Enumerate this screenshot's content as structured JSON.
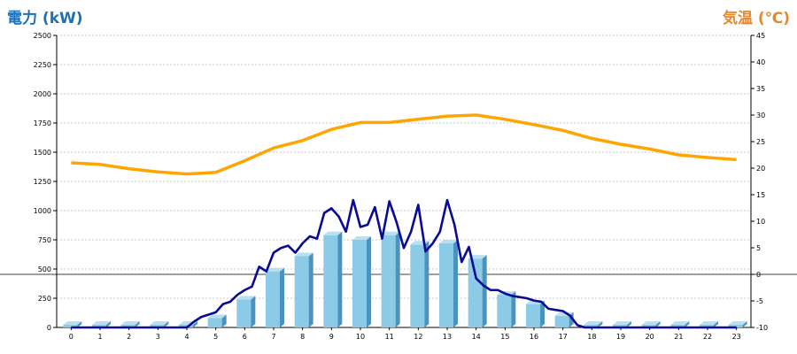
{
  "header": {
    "left_title": "電力 (kW)",
    "right_title": "気温 (℃)"
  },
  "colors": {
    "bar_front": "#8ccbe8",
    "bar_side": "#4a93bf",
    "bar_top": "#b8e0f3",
    "power_line": "#0a0a96",
    "temp_line": "#ffa500",
    "grid": "#c8c8c8",
    "left_title": "#1f6fb5",
    "right_title": "#e8862a"
  },
  "chart_data": {
    "type": "bar",
    "x": [
      "0",
      "1",
      "2",
      "3",
      "4",
      "5",
      "6",
      "7",
      "8",
      "9",
      "10",
      "11",
      "12",
      "13",
      "14",
      "15",
      "16",
      "17",
      "18",
      "19",
      "20",
      "21",
      "22",
      "23"
    ],
    "left_axis": {
      "min": 0,
      "max": 2500,
      "ticks": [
        "0",
        "250",
        "500",
        "750",
        "1000",
        "1250",
        "1500",
        "1750",
        "2000",
        "2250",
        "2500"
      ]
    },
    "right_axis": {
      "min": -10,
      "max": 45,
      "ticks": [
        "-10",
        "-5",
        "0",
        "5",
        "10",
        "15",
        "20",
        "25",
        "30",
        "35",
        "40",
        "45"
      ]
    },
    "grid": true,
    "series": [
      {
        "type": "bar",
        "axis": "left",
        "values": [
          0,
          0,
          0,
          0,
          0,
          80,
          240,
          480,
          610,
          790,
          750,
          790,
          710,
          720,
          590,
          280,
          200,
          100,
          0,
          0,
          0,
          0,
          0,
          0
        ]
      },
      {
        "type": "line",
        "axis": "left",
        "x": [
          0,
          0.5,
          1,
          1.5,
          2,
          2.5,
          3,
          3.5,
          4,
          4.25,
          4.5,
          4.75,
          5,
          5.25,
          5.5,
          5.75,
          6,
          6.25,
          6.5,
          6.75,
          7,
          7.25,
          7.5,
          7.75,
          8,
          8.25,
          8.5,
          8.75,
          9,
          9.25,
          9.5,
          9.75,
          10,
          10.25,
          10.5,
          10.75,
          11,
          11.25,
          11.5,
          11.75,
          12,
          12.25,
          12.5,
          12.75,
          13,
          13.25,
          13.5,
          13.75,
          14,
          14.25,
          14.5,
          14.75,
          15,
          15.25,
          15.5,
          15.75,
          16,
          16.25,
          16.5,
          16.75,
          17,
          17.25,
          17.5,
          17.75,
          18,
          19,
          20,
          21,
          22,
          23
        ],
        "values": [
          0,
          0,
          0,
          0,
          0,
          0,
          0,
          0,
          0,
          50,
          90,
          110,
          130,
          200,
          220,
          280,
          320,
          350,
          520,
          480,
          640,
          680,
          700,
          640,
          720,
          780,
          760,
          980,
          1020,
          950,
          820,
          1090,
          860,
          880,
          1030,
          760,
          1080,
          900,
          680,
          820,
          1050,
          650,
          720,
          820,
          1090,
          880,
          560,
          690,
          420,
          360,
          320,
          320,
          290,
          270,
          260,
          250,
          230,
          220,
          160,
          150,
          140,
          100,
          20,
          0,
          0,
          0,
          0,
          0,
          0,
          0
        ]
      },
      {
        "type": "line",
        "axis": "right",
        "values": [
          21.0,
          20.7,
          19.9,
          19.3,
          18.9,
          19.2,
          21.4,
          23.8,
          25.2,
          27.3,
          28.6,
          28.6,
          29.2,
          29.8,
          30.0,
          29.2,
          28.2,
          27.1,
          25.6,
          24.5,
          23.6,
          22.5,
          22.0,
          21.6
        ]
      }
    ]
  }
}
